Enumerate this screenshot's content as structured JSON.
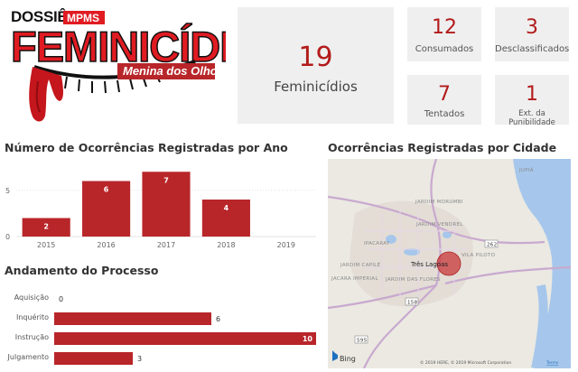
{
  "logo": {
    "line1": "DOSSIÊ",
    "org": "MPMS",
    "title": "FEMINICÍDIO",
    "subtitle": "Menina dos Olhos"
  },
  "kpis": {
    "total": {
      "value": "19",
      "label": "Feminicídios"
    },
    "consumados": {
      "value": "12",
      "label": "Consumados"
    },
    "desclassificados": {
      "value": "3",
      "label": "Desclassificados"
    },
    "tentados": {
      "value": "7",
      "label": "Tentados"
    },
    "extinta": {
      "value": "1",
      "label": "Ext. da Punibilidade"
    }
  },
  "year_chart": {
    "title": "Número de Ocorrências Registradas por Ano"
  },
  "process_chart": {
    "title": "Andamento do Processo"
  },
  "map": {
    "title": "Ocorrências Registradas por Cidade",
    "city": "Três Lagoas",
    "labels": [
      "JUPIÁ",
      "JARDIM MORUMBI",
      "JARDIM VENDREL",
      "IPACARAY",
      "JARDIM CAPILÉ",
      "JARDIM DAS FLORES",
      "JACARA IMPERIAL",
      "VILA PILOTO"
    ],
    "road_shields": [
      "262",
      "158",
      "595"
    ],
    "provider": "Bing",
    "copyright": "© 2019 HERE, © 2019 Microsoft Corporation",
    "terms": "Terms"
  },
  "colors": {
    "accent": "#b8262a",
    "card_bg": "#efefef",
    "kpi_number": "#b31b1b"
  },
  "chart_data": [
    {
      "type": "bar",
      "title": "Número de Ocorrências Registradas por Ano",
      "categories": [
        "2015",
        "2016",
        "2017",
        "2018",
        "2019"
      ],
      "values": [
        2,
        6,
        7,
        4,
        0
      ],
      "yticks": [
        0,
        5
      ],
      "ylim": [
        0,
        8
      ],
      "grid": true,
      "data_labels": true
    },
    {
      "type": "bar",
      "orientation": "horizontal",
      "title": "Andamento do Processo",
      "categories": [
        "Aquisição",
        "Inquérito",
        "Instrução",
        "Julgamento"
      ],
      "values": [
        0,
        6,
        10,
        3
      ],
      "xlim": [
        0,
        10
      ],
      "data_labels": true
    }
  ]
}
